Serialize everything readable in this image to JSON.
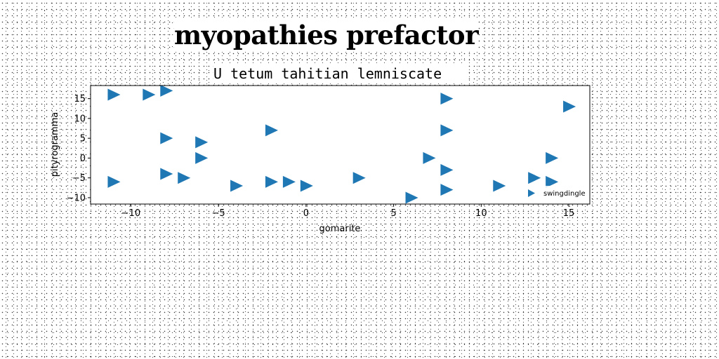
{
  "page": {
    "title": "myopathies prefactor"
  },
  "chart_data": {
    "type": "scatter",
    "title": "U tetum tahitian lemniscate",
    "xlabel": "gomarite",
    "ylabel": "pityrogramma",
    "xlim": [
      -12.3,
      16.2
    ],
    "ylim": [
      -11.6,
      18.3
    ],
    "xticks": [
      -10,
      -5,
      0,
      5,
      10,
      15
    ],
    "yticks": [
      -10,
      -5,
      0,
      5,
      10,
      15
    ],
    "x_tick_labels": [
      "−10",
      "−5",
      "0",
      "5",
      "10",
      "15"
    ],
    "y_tick_labels": [
      "−10",
      "−5",
      "0",
      "5",
      "10",
      "15"
    ],
    "grid": false,
    "legend_position": "lower-right",
    "marker": "triangle-right",
    "series": [
      {
        "name": "swingdingle",
        "color": "#1f77b4",
        "points": [
          {
            "x": -11,
            "y": 16
          },
          {
            "x": -9,
            "y": 16
          },
          {
            "x": -8,
            "y": 17
          },
          {
            "x": -8,
            "y": 5
          },
          {
            "x": -6,
            "y": 4
          },
          {
            "x": -6,
            "y": 0
          },
          {
            "x": -2,
            "y": 7
          },
          {
            "x": -11,
            "y": -6
          },
          {
            "x": -8,
            "y": -4
          },
          {
            "x": -7,
            "y": -5
          },
          {
            "x": -4,
            "y": -7
          },
          {
            "x": -2,
            "y": -6
          },
          {
            "x": -1,
            "y": -6
          },
          {
            "x": 0,
            "y": -7
          },
          {
            "x": 3,
            "y": -5
          },
          {
            "x": 6,
            "y": -10
          },
          {
            "x": 7,
            "y": 0
          },
          {
            "x": 8,
            "y": 15
          },
          {
            "x": 8,
            "y": 7
          },
          {
            "x": 8,
            "y": -3
          },
          {
            "x": 8,
            "y": -8
          },
          {
            "x": 11,
            "y": -7
          },
          {
            "x": 13,
            "y": -5
          },
          {
            "x": 14,
            "y": 0
          },
          {
            "x": 14,
            "y": -6
          },
          {
            "x": 15,
            "y": 13
          }
        ]
      }
    ]
  }
}
